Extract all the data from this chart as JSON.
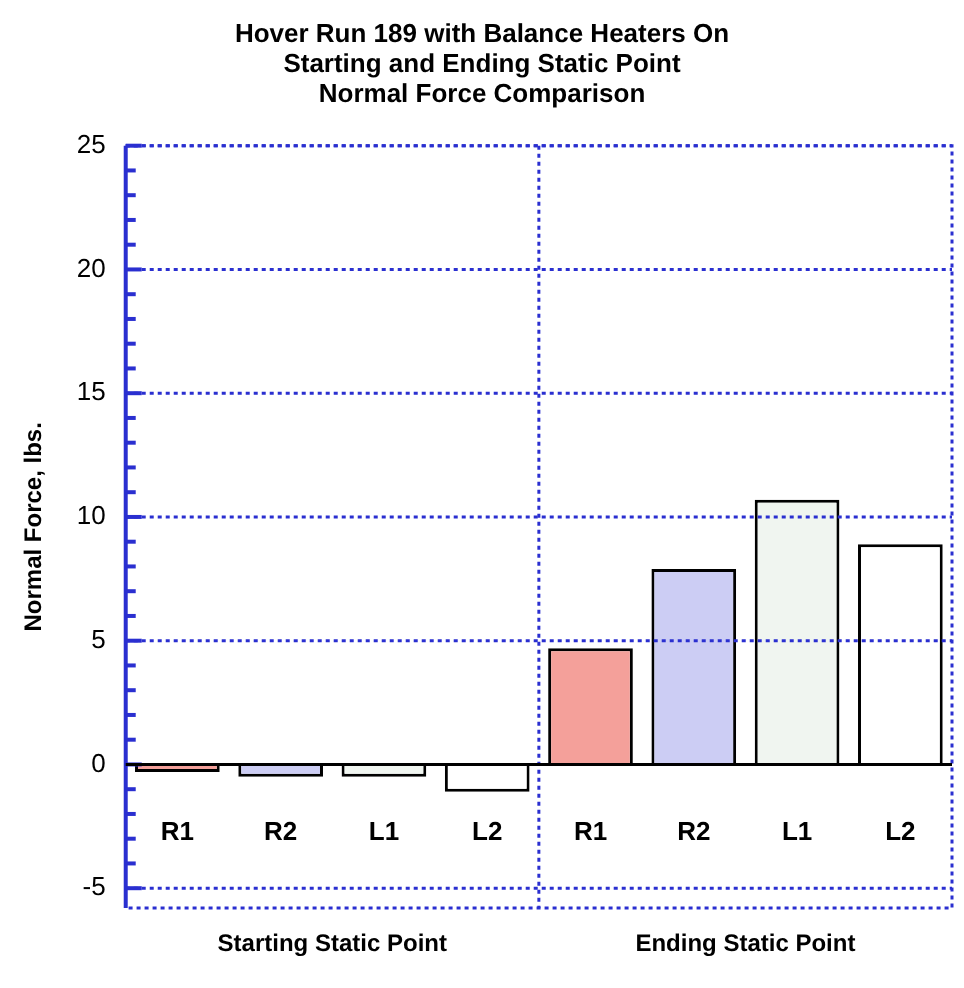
{
  "chart_data": {
    "type": "bar",
    "title": "Hover Run 189 with Balance Heaters On\nStarting and Ending Static Point\nNormal Force Comparison",
    "ylabel": "Normal Force, lbs.",
    "categories": [
      "R1",
      "R2",
      "L1",
      "L2",
      "R1",
      "R2",
      "L1",
      "L2"
    ],
    "values": [
      -0.3,
      -0.5,
      -0.5,
      -1.1,
      4.7,
      7.9,
      10.7,
      8.9
    ],
    "colors": [
      "#f4a09a",
      "#cccdf4",
      "#f0f5f0",
      "#ffffff",
      "#f4a09a",
      "#cccdf4",
      "#f0f5f0",
      "#ffffff"
    ],
    "annotations": [
      "Starting Static Point",
      "Ending Static Point"
    ],
    "ylim": [
      -5.8,
      25
    ],
    "yticks": [
      -5,
      {
        "value": -4,
        "label": null
      },
      {
        "value": -3,
        "label": null
      },
      {
        "value": -2,
        "label": null
      },
      {
        "value": -1,
        "label": null
      },
      0,
      {
        "value": 1,
        "label": null
      },
      {
        "value": 2,
        "label": null
      },
      {
        "value": 3,
        "label": null
      },
      {
        "value": 4,
        "label": null
      },
      5,
      {
        "value": 6,
        "label": null
      },
      {
        "value": 7,
        "label": null
      },
      {
        "value": 8,
        "label": null
      },
      {
        "value": 9,
        "label": null
      },
      10,
      {
        "value": 11,
        "label": null
      },
      {
        "value": 12,
        "label": null
      },
      {
        "value": 13,
        "label": null
      },
      {
        "value": 14,
        "label": null
      },
      15,
      {
        "value": 16,
        "label": null
      },
      {
        "value": 17,
        "label": null
      },
      {
        "value": 18,
        "label": null
      },
      {
        "value": 19,
        "label": null
      },
      20,
      {
        "value": 21,
        "label": null
      },
      {
        "value": 22,
        "label": null
      },
      {
        "value": 23,
        "label": null
      },
      {
        "value": 24,
        "label": null
      },
      25
    ],
    "grid": true,
    "legend": false
  }
}
